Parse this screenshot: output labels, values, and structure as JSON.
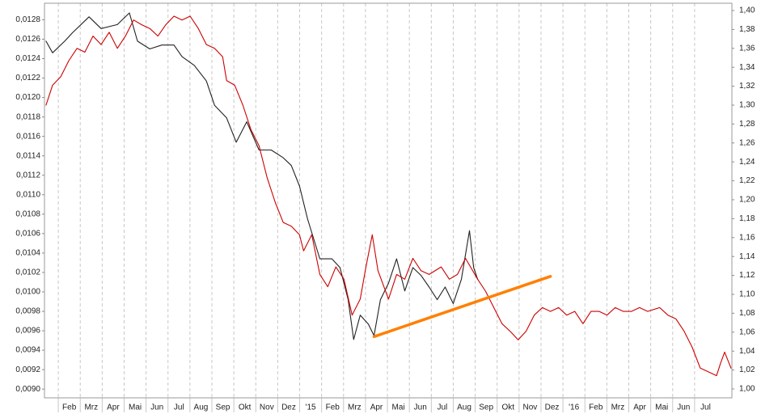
{
  "chart_data": {
    "type": "line",
    "xlim": [
      0.37,
      31.7
    ],
    "xticks": [
      {
        "value": 1,
        "label": "Feb"
      },
      {
        "value": 2,
        "label": "Mrz"
      },
      {
        "value": 3,
        "label": "Apr"
      },
      {
        "value": 4,
        "label": "Mai"
      },
      {
        "value": 5,
        "label": "Jun"
      },
      {
        "value": 6,
        "label": "Jul"
      },
      {
        "value": 7,
        "label": "Aug"
      },
      {
        "value": 8,
        "label": "Sep"
      },
      {
        "value": 9,
        "label": "Okt"
      },
      {
        "value": 10,
        "label": "Nov"
      },
      {
        "value": 11,
        "label": "Dez"
      },
      {
        "value": 12,
        "label": "'15"
      },
      {
        "value": 13,
        "label": "Feb"
      },
      {
        "value": 14,
        "label": "Mrz"
      },
      {
        "value": 15,
        "label": "Apr"
      },
      {
        "value": 16,
        "label": "Mai"
      },
      {
        "value": 17,
        "label": "Jun"
      },
      {
        "value": 18,
        "label": "Jul"
      },
      {
        "value": 19,
        "label": "Aug"
      },
      {
        "value": 20,
        "label": "Sep"
      },
      {
        "value": 21,
        "label": "Okt"
      },
      {
        "value": 22,
        "label": "Nov"
      },
      {
        "value": 23,
        "label": "Dez"
      },
      {
        "value": 24,
        "label": "'16"
      },
      {
        "value": 25,
        "label": "Feb"
      },
      {
        "value": 26,
        "label": "Mrz"
      },
      {
        "value": 27,
        "label": "Apr"
      },
      {
        "value": 28,
        "label": "Mai"
      },
      {
        "value": 29,
        "label": "Jun"
      },
      {
        "value": 30,
        "label": "Jul"
      }
    ],
    "ylim": [
      0.00891,
      0.01297
    ],
    "yticks": [
      {
        "value": 0.009,
        "label": "0,0090"
      },
      {
        "value": 0.0092,
        "label": "0,0092"
      },
      {
        "value": 0.0094,
        "label": "0,0094"
      },
      {
        "value": 0.0096,
        "label": "0,0096"
      },
      {
        "value": 0.0098,
        "label": "0,0098"
      },
      {
        "value": 0.01,
        "label": "0,0100"
      },
      {
        "value": 0.0102,
        "label": "0,0102"
      },
      {
        "value": 0.0104,
        "label": "0,0104"
      },
      {
        "value": 0.0106,
        "label": "0,0106"
      },
      {
        "value": 0.0108,
        "label": "0,0108"
      },
      {
        "value": 0.011,
        "label": "0,0110"
      },
      {
        "value": 0.0112,
        "label": "0,0112"
      },
      {
        "value": 0.0114,
        "label": "0,0114"
      },
      {
        "value": 0.0116,
        "label": "0,0116"
      },
      {
        "value": 0.0118,
        "label": "0,0118"
      },
      {
        "value": 0.012,
        "label": "0,0120"
      },
      {
        "value": 0.0122,
        "label": "0,0122"
      },
      {
        "value": 0.0124,
        "label": "0,0124"
      },
      {
        "value": 0.0126,
        "label": "0,0126"
      },
      {
        "value": 0.0128,
        "label": "0,0128"
      }
    ],
    "y2lim": [
      0.9906,
      1.4077
    ],
    "y2ticks": [
      {
        "value": 1.0,
        "label": "1,00"
      },
      {
        "value": 1.02,
        "label": "1,02"
      },
      {
        "value": 1.04,
        "label": "1,04"
      },
      {
        "value": 1.06,
        "label": "1,06"
      },
      {
        "value": 1.08,
        "label": "1,08"
      },
      {
        "value": 1.1,
        "label": "1,10"
      },
      {
        "value": 1.12,
        "label": "1,12"
      },
      {
        "value": 1.14,
        "label": "1,14"
      },
      {
        "value": 1.16,
        "label": "1,16"
      },
      {
        "value": 1.18,
        "label": "1,18"
      },
      {
        "value": 1.2,
        "label": "1,20"
      },
      {
        "value": 1.22,
        "label": "1,22"
      },
      {
        "value": 1.24,
        "label": "1,24"
      },
      {
        "value": 1.26,
        "label": "1,26"
      },
      {
        "value": 1.28,
        "label": "1,28"
      },
      {
        "value": 1.3,
        "label": "1,30"
      },
      {
        "value": 1.32,
        "label": "1,32"
      },
      {
        "value": 1.34,
        "label": "1,34"
      },
      {
        "value": 1.36,
        "label": "1,36"
      },
      {
        "value": 1.38,
        "label": "1,38"
      },
      {
        "value": 1.4,
        "label": "1,40"
      }
    ],
    "grid": true,
    "series": [
      {
        "color": "#222222",
        "axis": "y",
        "x": [
          0.44,
          0.74,
          1.29,
          1.66,
          2.4,
          2.95,
          3.69,
          4.24,
          4.61,
          5.17,
          5.72,
          6.27,
          6.64,
          7.2,
          7.75,
          8.12,
          8.67,
          9.11,
          9.59,
          10.15,
          10.7,
          11.25,
          11.62,
          11.99,
          12.36,
          12.92,
          13.47,
          13.84,
          14.21,
          14.46,
          14.76,
          15.13,
          15.39,
          15.68,
          16.05,
          16.42,
          16.79,
          17.16,
          17.53,
          17.9,
          18.27,
          18.63,
          19.0,
          19.37,
          19.74,
          19.93,
          20.11
        ],
        "values": [
          0.01258,
          0.01246,
          0.01258,
          0.01267,
          0.01283,
          0.01271,
          0.01275,
          0.01287,
          0.01258,
          0.0125,
          0.01254,
          0.01254,
          0.01242,
          0.01233,
          0.01217,
          0.01192,
          0.01179,
          0.01154,
          0.01175,
          0.01146,
          0.01146,
          0.01138,
          0.0113,
          0.01109,
          0.01075,
          0.01034,
          0.01034,
          0.01025,
          0.00992,
          0.00951,
          0.00976,
          0.00967,
          0.00955,
          0.00992,
          0.01009,
          0.01034,
          0.01001,
          0.01025,
          0.01017,
          0.01005,
          0.00992,
          0.01005,
          0.00988,
          0.01013,
          0.01063,
          0.01025,
          0.01013
        ]
      },
      {
        "color": "#cc0000",
        "axis": "y2",
        "x": [
          0.44,
          0.74,
          1.11,
          1.48,
          1.85,
          2.21,
          2.58,
          2.95,
          3.32,
          3.69,
          4.06,
          4.43,
          4.8,
          5.17,
          5.54,
          5.9,
          6.27,
          6.64,
          7.01,
          7.38,
          7.75,
          8.12,
          8.49,
          8.67,
          9.04,
          9.41,
          9.78,
          10.15,
          10.52,
          10.89,
          11.25,
          11.62,
          11.99,
          12.18,
          12.55,
          12.92,
          13.28,
          13.65,
          14.02,
          14.39,
          14.76,
          15.02,
          15.31,
          15.57,
          16.05,
          16.42,
          16.79,
          17.16,
          17.53,
          17.9,
          18.45,
          18.82,
          19.19,
          19.56,
          20.11,
          20.48,
          20.85,
          21.22,
          21.59,
          21.96,
          22.32,
          22.69,
          23.06,
          23.43,
          23.8,
          24.17,
          24.54,
          24.91,
          25.28,
          25.65,
          26.01,
          26.38,
          26.75,
          27.12,
          27.49,
          27.86,
          28.41,
          28.78,
          29.15,
          29.52,
          29.89,
          30.26,
          30.63,
          31.0,
          31.18,
          31.37,
          31.66
        ],
        "values": [
          1.3,
          1.321,
          1.33,
          1.347,
          1.36,
          1.356,
          1.373,
          1.364,
          1.377,
          1.36,
          1.373,
          1.39,
          1.385,
          1.381,
          1.373,
          1.385,
          1.394,
          1.39,
          1.394,
          1.381,
          1.364,
          1.36,
          1.351,
          1.326,
          1.321,
          1.3,
          1.274,
          1.257,
          1.223,
          1.197,
          1.176,
          1.172,
          1.163,
          1.146,
          1.163,
          1.121,
          1.108,
          1.129,
          1.116,
          1.078,
          1.095,
          1.129,
          1.163,
          1.125,
          1.095,
          1.121,
          1.116,
          1.138,
          1.125,
          1.121,
          1.129,
          1.116,
          1.121,
          1.138,
          1.116,
          1.103,
          1.086,
          1.069,
          1.061,
          1.052,
          1.061,
          1.078,
          1.086,
          1.082,
          1.086,
          1.078,
          1.082,
          1.069,
          1.082,
          1.082,
          1.078,
          1.086,
          1.082,
          1.082,
          1.086,
          1.082,
          1.086,
          1.078,
          1.074,
          1.061,
          1.044,
          1.022,
          1.018,
          1.014,
          1.027,
          1.039,
          1.022
        ]
      },
      {
        "color": "#ff8000",
        "axis": "y",
        "x": [
          15.39,
          23.43
        ],
        "values": [
          0.00954,
          0.01016
        ]
      }
    ]
  }
}
